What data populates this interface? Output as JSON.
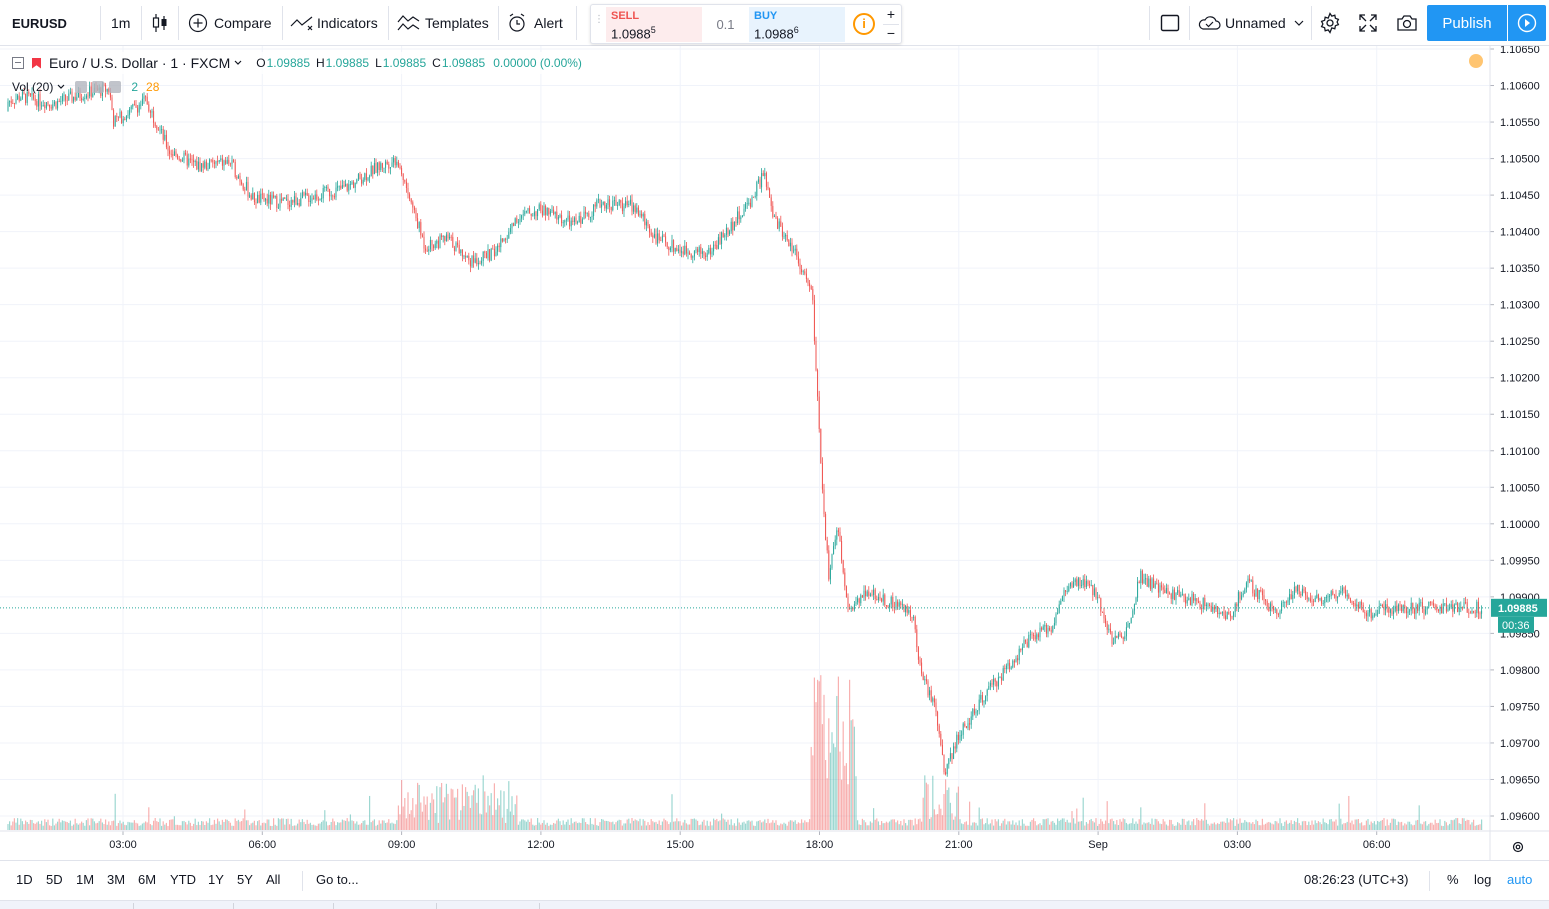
{
  "toolbar": {
    "symbol": "EURUSD",
    "interval": "1m",
    "compare_label": "Compare",
    "indicators_label": "Indicators",
    "templates_label": "Templates",
    "alert_label": "Alert",
    "layout_name": "Unnamed",
    "publish_label": "Publish"
  },
  "trade": {
    "sell_label": "SELL",
    "sell_price": "1.0988",
    "sell_pip": "5",
    "spread": "0.1",
    "buy_label": "BUY",
    "buy_price": "1.0988",
    "buy_pip": "6",
    "info_icon": "i",
    "plus": "+",
    "minus": "−"
  },
  "legend": {
    "title": "Euro / U.S. Dollar · 1 · FXCM",
    "open_key": "O",
    "open": "1.09885",
    "high_key": "H",
    "high": "1.09885",
    "low_key": "L",
    "low": "1.09885",
    "close_key": "C",
    "close": "1.09885",
    "change": "0.00000 (0.00%)"
  },
  "volume_legend": {
    "label": "Vol (20)",
    "value_up": "2",
    "value_ma": "28"
  },
  "price_scale": {
    "labels": [
      "1.10650",
      "1.10600",
      "1.10550",
      "1.10500",
      "1.10450",
      "1.10400",
      "1.10350",
      "1.10300",
      "1.10250",
      "1.10200",
      "1.10150",
      "1.10100",
      "1.10050",
      "1.10000",
      "1.09950",
      "1.09900",
      "1.09850",
      "1.09800",
      "1.09750",
      "1.09700",
      "1.09650",
      "1.09600"
    ],
    "last_price": "1.09885",
    "countdown": "00:36"
  },
  "time_scale": {
    "labels": [
      "03:00",
      "06:00",
      "09:00",
      "12:00",
      "15:00",
      "18:00",
      "21:00",
      "Sep",
      "03:00",
      "06:00"
    ]
  },
  "bottom_bar": {
    "ranges": [
      "1D",
      "5D",
      "1M",
      "3M",
      "6M",
      "YTD",
      "1Y",
      "5Y",
      "All"
    ],
    "active_range": "1D",
    "goto_label": "Go to...",
    "clock": "08:26:23 (UTC+3)",
    "percent_label": "%",
    "log_label": "log",
    "auto_label": "auto"
  },
  "colors": {
    "up": "#26a69a",
    "down": "#ef5350",
    "accent": "#2196f3",
    "last_price_bg": "#26a69a"
  },
  "chart_data": {
    "type": "candlestick",
    "symbol": "EURUSD",
    "interval": "1m",
    "ylim": [
      1.0958,
      1.1066
    ],
    "xlabel": "",
    "ylabel": "",
    "x_ticks": [
      "03:00",
      "06:00",
      "09:00",
      "12:00",
      "15:00",
      "18:00",
      "21:00",
      "Sep",
      "03:00",
      "06:00"
    ],
    "price_path": [
      {
        "t": 0.0,
        "p": 1.10565
      },
      {
        "t": 0.8,
        "p": 1.10585
      },
      {
        "t": 1.5,
        "p": 1.10575
      },
      {
        "t": 2.2,
        "p": 1.1059
      },
      {
        "t": 2.7,
        "p": 1.10595
      },
      {
        "t": 2.8,
        "p": 1.1055
      },
      {
        "t": 3.5,
        "p": 1.1058
      },
      {
        "t": 4.0,
        "p": 1.1051
      },
      {
        "t": 4.6,
        "p": 1.1049
      },
      {
        "t": 5.3,
        "p": 1.10495
      },
      {
        "t": 5.8,
        "p": 1.10445
      },
      {
        "t": 6.5,
        "p": 1.1044
      },
      {
        "t": 7.2,
        "p": 1.1045
      },
      {
        "t": 7.8,
        "p": 1.1046
      },
      {
        "t": 8.4,
        "p": 1.10485
      },
      {
        "t": 8.9,
        "p": 1.105
      },
      {
        "t": 9.2,
        "p": 1.1044
      },
      {
        "t": 9.5,
        "p": 1.1038
      },
      {
        "t": 10.0,
        "p": 1.1039
      },
      {
        "t": 10.5,
        "p": 1.1036
      },
      {
        "t": 11.0,
        "p": 1.1037
      },
      {
        "t": 11.5,
        "p": 1.1042
      },
      {
        "t": 12.0,
        "p": 1.1043
      },
      {
        "t": 12.7,
        "p": 1.1041
      },
      {
        "t": 13.3,
        "p": 1.1044
      },
      {
        "t": 14.0,
        "p": 1.10435
      },
      {
        "t": 14.5,
        "p": 1.1039
      },
      {
        "t": 15.0,
        "p": 1.10375
      },
      {
        "t": 15.6,
        "p": 1.1037
      },
      {
        "t": 16.0,
        "p": 1.104
      },
      {
        "t": 16.5,
        "p": 1.1044
      },
      {
        "t": 16.8,
        "p": 1.1048
      },
      {
        "t": 17.0,
        "p": 1.1042
      },
      {
        "t": 17.5,
        "p": 1.1037
      },
      {
        "t": 17.85,
        "p": 1.1031
      },
      {
        "t": 17.95,
        "p": 1.1018
      },
      {
        "t": 18.05,
        "p": 1.1005
      },
      {
        "t": 18.2,
        "p": 1.0993
      },
      {
        "t": 18.4,
        "p": 1.1
      },
      {
        "t": 18.6,
        "p": 1.0988
      },
      {
        "t": 19.0,
        "p": 1.0991
      },
      {
        "t": 19.6,
        "p": 1.0989
      },
      {
        "t": 20.0,
        "p": 1.0988
      },
      {
        "t": 20.2,
        "p": 1.0979
      },
      {
        "t": 20.5,
        "p": 1.0975
      },
      {
        "t": 20.7,
        "p": 1.0966
      },
      {
        "t": 21.0,
        "p": 1.0971
      },
      {
        "t": 21.5,
        "p": 1.0976
      },
      {
        "t": 22.0,
        "p": 1.098
      },
      {
        "t": 22.5,
        "p": 1.0984
      },
      {
        "t": 23.0,
        "p": 1.0986
      },
      {
        "t": 23.3,
        "p": 1.0991
      },
      {
        "t": 23.7,
        "p": 1.0992
      },
      {
        "t": 24.0,
        "p": 1.099
      },
      {
        "t": 24.3,
        "p": 1.0984
      },
      {
        "t": 24.6,
        "p": 1.0985
      },
      {
        "t": 24.9,
        "p": 1.0993
      },
      {
        "t": 25.3,
        "p": 1.0991
      },
      {
        "t": 25.8,
        "p": 1.099
      },
      {
        "t": 26.3,
        "p": 1.0989
      },
      {
        "t": 26.8,
        "p": 1.0987
      },
      {
        "t": 27.2,
        "p": 1.0992
      },
      {
        "t": 27.8,
        "p": 1.0988
      },
      {
        "t": 28.3,
        "p": 1.0991
      },
      {
        "t": 28.8,
        "p": 1.09895
      },
      {
        "t": 29.3,
        "p": 1.0991
      },
      {
        "t": 29.8,
        "p": 1.09875
      },
      {
        "t": 30.1,
        "p": 1.09885
      }
    ]
  }
}
